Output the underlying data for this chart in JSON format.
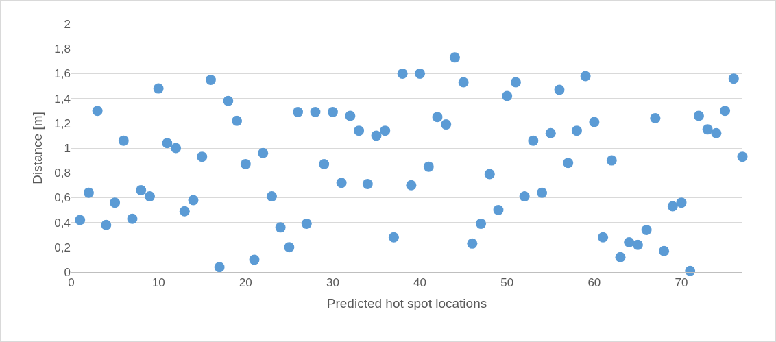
{
  "chart_data": {
    "type": "scatter",
    "xlabel": "Predicted hot spot locations",
    "ylabel": "Distance [m]",
    "x": [
      1,
      2,
      3,
      4,
      5,
      6,
      7,
      8,
      9,
      10,
      11,
      12,
      13,
      14,
      15,
      16,
      17,
      18,
      19,
      20,
      21,
      22,
      23,
      24,
      25,
      26,
      27,
      28,
      29,
      30,
      31,
      32,
      33,
      34,
      35,
      36,
      37,
      38,
      39,
      40,
      41,
      42,
      43,
      44,
      45,
      46,
      47,
      48,
      49,
      50,
      51,
      52,
      53,
      54,
      55,
      56,
      57,
      58,
      59,
      60,
      61,
      62,
      63,
      64,
      65,
      66,
      67,
      68,
      69,
      70,
      71,
      72,
      73,
      74,
      75,
      76,
      77
    ],
    "series": [
      {
        "color": "#5b9bd5",
        "values": [
          0.42,
          0.64,
          1.3,
          0.38,
          0.56,
          1.06,
          0.43,
          0.66,
          0.61,
          1.48,
          1.04,
          1.0,
          0.49,
          0.58,
          0.93,
          1.55,
          0.04,
          1.38,
          1.22,
          0.87,
          0.1,
          0.96,
          0.61,
          0.36,
          0.2,
          1.29,
          0.39,
          1.29,
          0.87,
          1.29,
          0.72,
          1.26,
          1.14,
          0.71,
          1.1,
          1.14,
          0.28,
          1.6,
          0.7,
          1.6,
          0.85,
          1.25,
          1.19,
          1.73,
          1.53,
          0.23,
          0.39,
          0.79,
          0.5,
          1.42,
          1.53,
          0.61,
          1.06,
          0.64,
          1.12,
          1.47,
          0.88,
          1.14,
          1.58,
          1.21,
          0.28,
          0.9,
          0.12,
          0.24,
          0.22,
          0.34,
          1.24,
          0.17,
          0.53,
          0.56,
          0.01,
          1.26,
          1.15,
          1.12,
          1.3,
          1.56,
          0.93
        ]
      }
    ],
    "xlim": [
      0,
      77
    ],
    "xticks": [
      0,
      10,
      20,
      30,
      40,
      50,
      60,
      70
    ],
    "ylim": [
      0,
      2
    ],
    "yticks": [
      0,
      {
        "value": 0.2,
        "label": "0,2"
      },
      {
        "value": 0.4,
        "label": "0,4"
      },
      {
        "value": 0.6,
        "label": "0,6"
      },
      {
        "value": 0.8,
        "label": "0,8"
      },
      1,
      {
        "value": 1.2,
        "label": "1,2"
      },
      {
        "value": 1.4,
        "label": "1,4"
      },
      {
        "value": 1.6,
        "label": "1,6"
      },
      {
        "value": 1.8,
        "label": "1,8"
      },
      2
    ],
    "grid": "y",
    "marker": "circle"
  }
}
